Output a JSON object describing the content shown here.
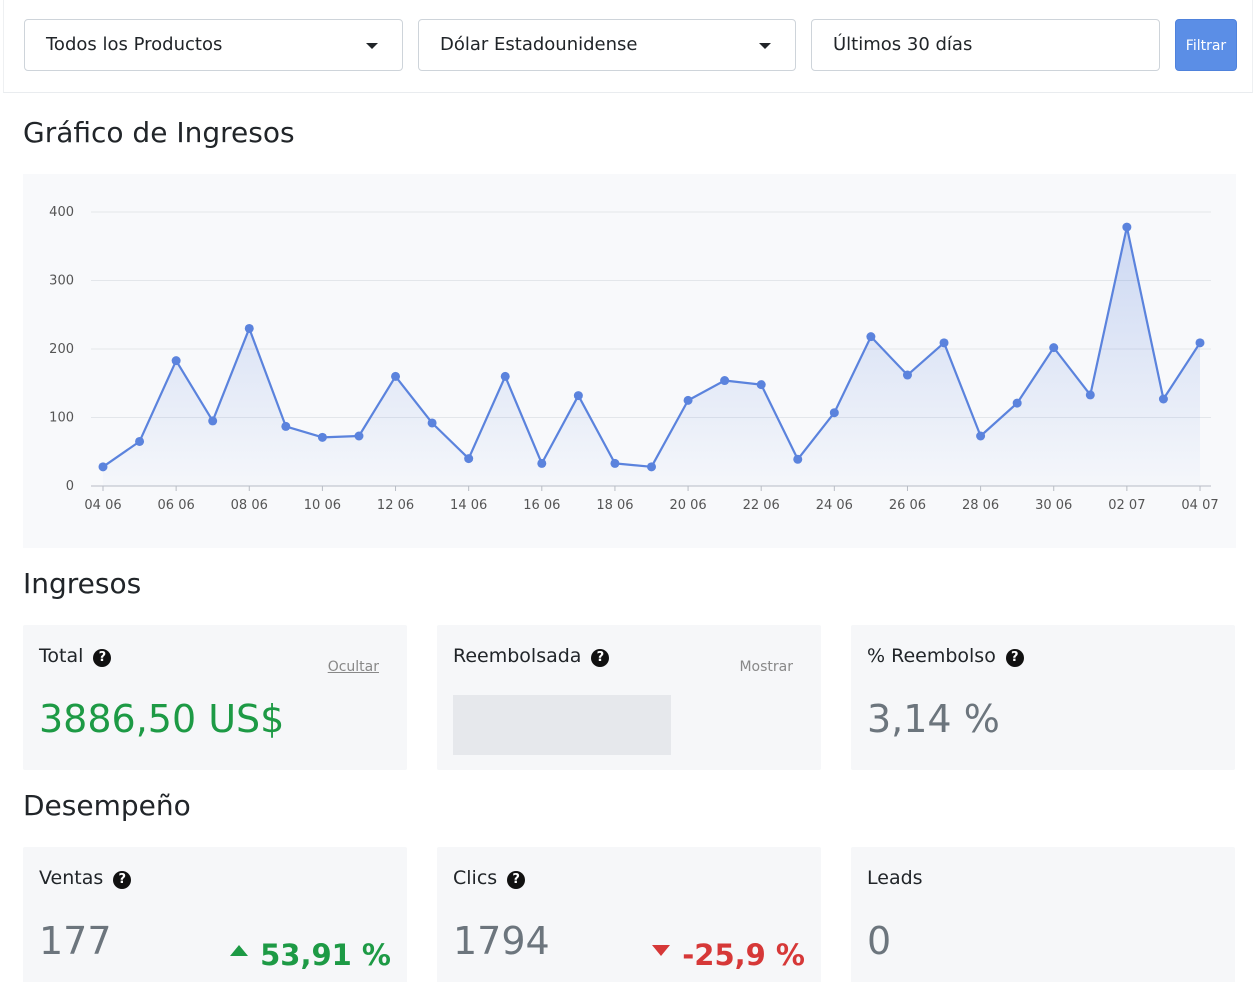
{
  "filters": {
    "product": "Todos los Productos",
    "currency": "Dólar Estadounidense",
    "period": "Últimos 30 días",
    "button": "Filtrar"
  },
  "sections": {
    "chart_title": "Gráfico de Ingresos",
    "revenue_title": "Ingresos",
    "performance_title": "Desempeño"
  },
  "revenue": {
    "total": {
      "label": "Total",
      "toggle": "Ocultar",
      "value": "3886,50 US$"
    },
    "refunded": {
      "label": "Reembolsada",
      "toggle": "Mostrar"
    },
    "refund_pct": {
      "label": "% Reembolso",
      "value": "3,14 %"
    }
  },
  "performance": {
    "sales": {
      "label": "Ventas",
      "value": "177",
      "delta": "53,91 %",
      "trend": "up"
    },
    "clicks": {
      "label": "Clics",
      "value": "1794",
      "delta": "-25,9 %",
      "trend": "down"
    },
    "leads": {
      "label": "Leads",
      "value": "0"
    }
  },
  "colors": {
    "line": "#5b83dd",
    "positive": "#1d9a45",
    "negative": "#d63838",
    "button": "#5b8ee6"
  },
  "icons": {
    "help": "question-circle-icon",
    "dropdown": "caret-down-icon"
  },
  "chart_data": {
    "type": "area",
    "title": "",
    "xlabel": "",
    "ylabel": "",
    "ylim": [
      0,
      400
    ],
    "yticks": [
      0,
      100,
      200,
      300,
      400
    ],
    "grid": true,
    "x": [
      "04 06",
      "05 06",
      "06 06",
      "07 06",
      "08 06",
      "09 06",
      "10 06",
      "11 06",
      "12 06",
      "13 06",
      "14 06",
      "15 06",
      "16 06",
      "17 06",
      "18 06",
      "19 06",
      "20 06",
      "21 06",
      "22 06",
      "23 06",
      "24 06",
      "25 06",
      "26 06",
      "27 06",
      "28 06",
      "29 06",
      "30 06",
      "01 07",
      "02 07",
      "03 07",
      "04 07"
    ],
    "xtick_labels": [
      "04 06",
      "06 06",
      "08 06",
      "10 06",
      "12 06",
      "14 06",
      "16 06",
      "18 06",
      "20 06",
      "22 06",
      "24 06",
      "26 06",
      "28 06",
      "30 06",
      "02 07",
      "04 07"
    ],
    "values": [
      28,
      65,
      183,
      95,
      230,
      87,
      71,
      73,
      160,
      92,
      40,
      160,
      33,
      132,
      33,
      28,
      125,
      154,
      148,
      39,
      107,
      218,
      162,
      209,
      73,
      121,
      202,
      133,
      378,
      127,
      209
    ]
  }
}
